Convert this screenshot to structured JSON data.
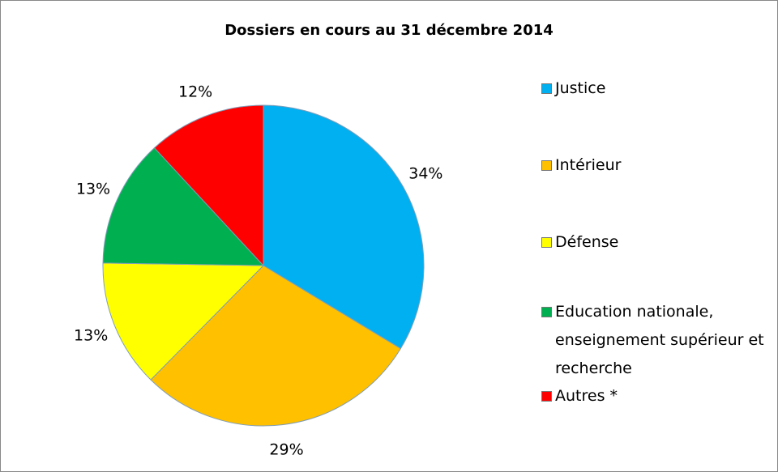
{
  "chart_data": {
    "type": "pie",
    "title": "Dossiers en cours au 31 décembre 2014",
    "categories": [
      "Justice",
      "Intérieur",
      "Défense",
      "Education nationale, enseignement supérieur et recherche",
      "Autres *"
    ],
    "values": [
      34,
      29,
      13,
      13,
      12
    ],
    "value_labels": [
      "34%",
      "29%",
      "13%",
      "13%",
      "12%"
    ],
    "colors": [
      "#00b0f0",
      "#ffc000",
      "#ffff00",
      "#00b050",
      "#ff0000"
    ],
    "legend": "right"
  }
}
